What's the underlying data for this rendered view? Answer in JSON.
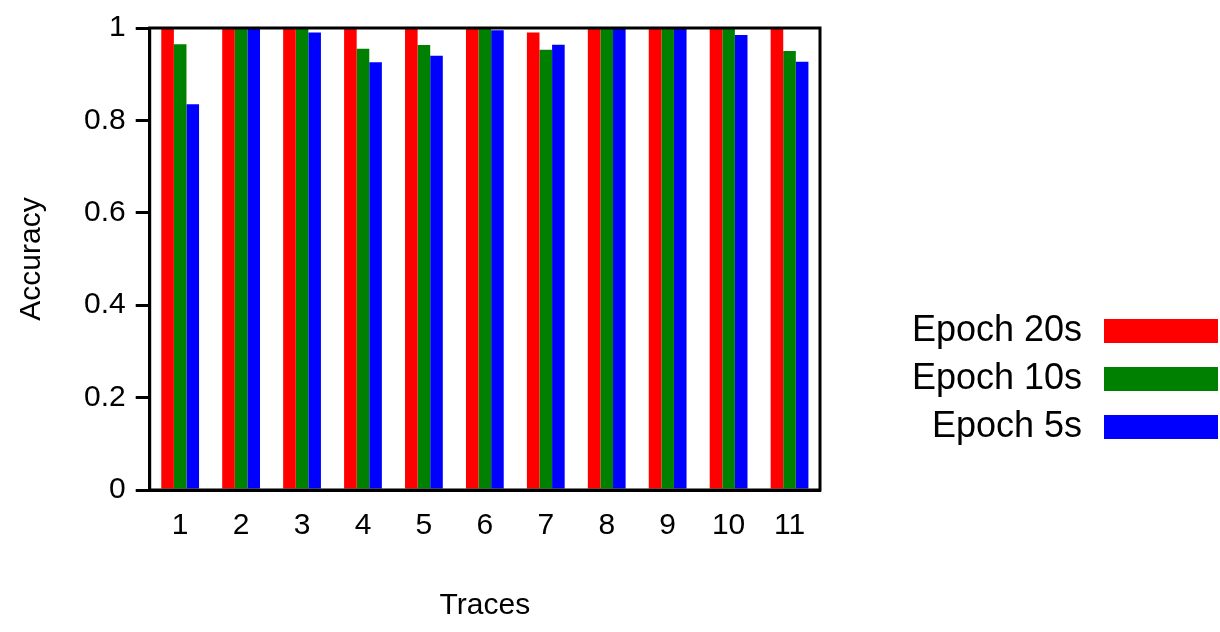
{
  "chart_data": {
    "type": "bar",
    "xlabel": "Traces",
    "ylabel": "Accuracy",
    "categories": [
      "1",
      "2",
      "3",
      "4",
      "5",
      "6",
      "7",
      "8",
      "9",
      "10",
      "11"
    ],
    "series": [
      {
        "name": "Epoch 20s",
        "color": "#ff0000",
        "values": [
          1,
          1,
          1,
          1,
          1,
          1,
          0.99,
          1,
          1,
          1,
          1
        ]
      },
      {
        "name": "Epoch 10s",
        "color": "#008000",
        "values": [
          0.965,
          1,
          1,
          0.955,
          0.963,
          1,
          0.953,
          1,
          1,
          1,
          0.95
        ]
      },
      {
        "name": "Epoch 5s",
        "color": "#0000ff",
        "values": [
          0.835,
          1,
          0.99,
          0.926,
          0.94,
          0.995,
          0.964,
          1,
          1,
          0.985,
          0.927
        ]
      }
    ],
    "ylim": [
      0,
      1
    ],
    "yticks": [
      0,
      0.2,
      0.4,
      0.6,
      0.8,
      1
    ],
    "grid": false,
    "legend": "right"
  }
}
